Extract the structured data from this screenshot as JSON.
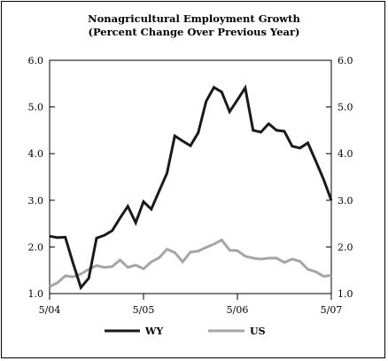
{
  "chart_data": {
    "type": "line",
    "title": "Nonagricultural Employment Growth",
    "subtitle": "(Percent Change Over Previous Year)",
    "xlabel": "",
    "ylabel": "",
    "ylim": [
      1.0,
      6.0
    ],
    "yticks": [
      "1.0",
      "2.0",
      "3.0",
      "4.0",
      "5.0",
      "6.0"
    ],
    "xticks": [
      "5/04",
      "5/05",
      "5/06",
      "5/07"
    ],
    "legend_position": "bottom-center",
    "grid": false,
    "series": [
      {
        "name": "WY",
        "color": "#1a1a1a",
        "values": [
          2.23,
          2.2,
          2.21,
          1.65,
          1.13,
          1.33,
          2.19,
          2.25,
          2.35,
          2.62,
          2.87,
          2.52,
          2.97,
          2.81,
          3.2,
          3.58,
          4.38,
          4.27,
          4.17,
          4.45,
          5.12,
          5.42,
          5.32,
          4.9,
          5.15,
          5.41,
          4.5,
          4.46,
          4.64,
          4.5,
          4.48,
          4.16,
          4.12,
          4.23,
          3.85,
          3.45,
          3.0
        ]
      },
      {
        "name": "US",
        "color": "#a6a6a6",
        "values": [
          1.15,
          1.23,
          1.38,
          1.36,
          1.42,
          1.52,
          1.6,
          1.56,
          1.58,
          1.72,
          1.56,
          1.61,
          1.53,
          1.68,
          1.77,
          1.95,
          1.88,
          1.68,
          1.89,
          1.91,
          1.99,
          2.06,
          2.15,
          1.93,
          1.92,
          1.8,
          1.76,
          1.74,
          1.76,
          1.76,
          1.67,
          1.74,
          1.69,
          1.52,
          1.47,
          1.37,
          1.39
        ]
      }
    ]
  }
}
